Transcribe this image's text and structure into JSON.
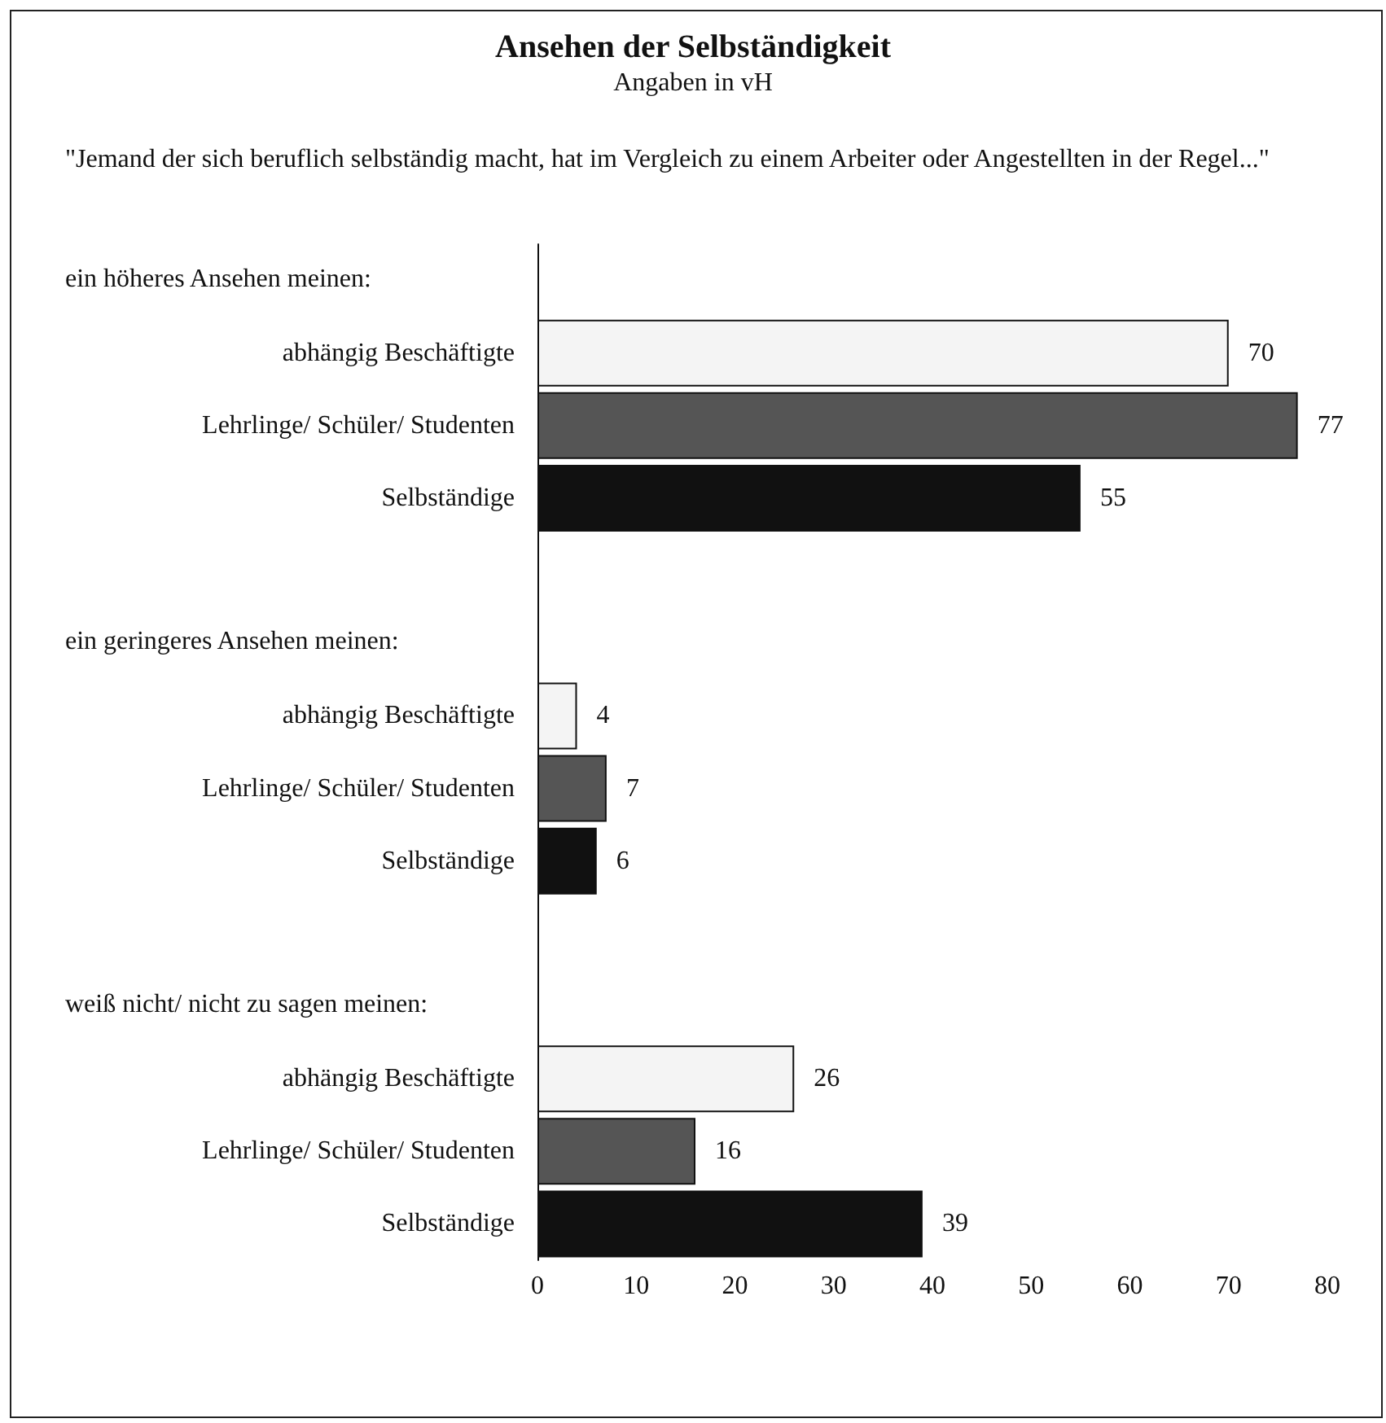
{
  "chart_data": {
    "type": "bar",
    "orientation": "horizontal",
    "title": "Ansehen der Selbständigkeit",
    "subtitle": "Angaben in vH",
    "annotations": [
      "\"Jemand der sich beruflich selbständig macht, hat im Vergleich zu einem Arbeiter oder Angestellten in der Regel...\"",
      "ein höheres Ansehen meinen:",
      "ein geringeres Ansehen meinen:",
      "weiß nicht/ nicht zu sagen meinen:"
    ],
    "categories": [
      null,
      "abhängig Beschäftigte",
      "Lehrlinge/ Schüler/ Studenten",
      "Selbständige",
      null,
      null,
      "abhängig Beschäftigte",
      "Lehrlinge/ Schüler/ Studenten",
      "Selbständige",
      null,
      null,
      "abhängig Beschäftigte",
      "Lehrlinge/ Schüler/ Studenten",
      "Selbständige"
    ],
    "values": [
      null,
      70,
      77,
      55,
      null,
      null,
      4,
      7,
      6,
      null,
      null,
      26,
      16,
      39
    ],
    "colors": [
      null,
      "#f4f4f4",
      "#555555",
      "#111111",
      null,
      null,
      "#f4f4f4",
      "#555555",
      "#111111",
      null,
      null,
      "#f4f4f4",
      "#555555",
      "#111111"
    ],
    "xlim": [
      0,
      80
    ],
    "xticks": [
      0,
      10,
      20,
      30,
      40,
      50,
      60,
      70,
      80
    ],
    "data_labels": true
  }
}
